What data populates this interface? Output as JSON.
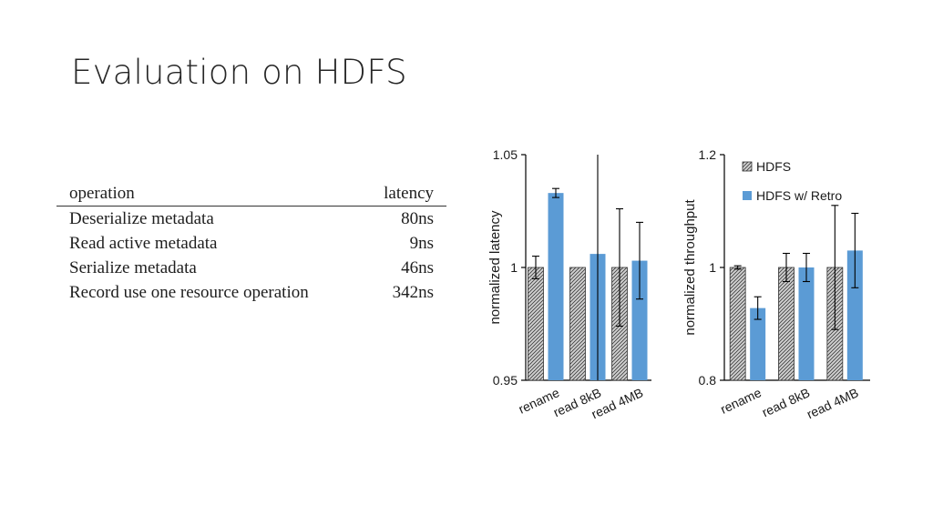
{
  "title": "Evaluation on HDFS",
  "table": {
    "headers": [
      "operation",
      "latency"
    ],
    "rows": [
      [
        "Deserialize metadata",
        "80ns"
      ],
      [
        "Read active metadata",
        "9ns"
      ],
      [
        "Serialize metadata",
        "46ns"
      ],
      [
        "Record use one resource operation",
        "342ns"
      ]
    ]
  },
  "colors": {
    "hdfs": "#d0d0d0",
    "hdfs_retro": "#5b9bd5"
  },
  "chart_data": [
    {
      "type": "bar",
      "categories": [
        "rename",
        "read 8kB",
        "read 4MB"
      ],
      "ylabel": "normalized latency",
      "ylim": [
        0.95,
        1.05
      ],
      "yticks": [
        "0.95",
        "1",
        "1.05"
      ],
      "series": [
        {
          "values": [
            1.0,
            1.0,
            1.0
          ],
          "errors": [
            0.005,
            null,
            0.026
          ],
          "pattern": "hatched"
        },
        {
          "values": [
            1.033,
            1.006,
            1.003
          ],
          "errors": [
            0.002,
            0.06,
            0.017
          ],
          "pattern": "solid"
        }
      ],
      "grid": false
    },
    {
      "type": "bar",
      "categories": [
        "rename",
        "read 8kB",
        "read 4MB"
      ],
      "ylabel": "normalized throughput",
      "ylim": [
        0.8,
        1.2
      ],
      "yticks": [
        "0.8",
        "1",
        "1.2"
      ],
      "legend": {
        "position": "top-right",
        "entries": [
          "HDFS",
          "HDFS w/ Retro"
        ]
      },
      "series": [
        {
          "name": "HDFS",
          "values": [
            1.0,
            1.0,
            1.0
          ],
          "errors": [
            0.003,
            0.025,
            0.11
          ],
          "pattern": "hatched"
        },
        {
          "name": "HDFS w/ Retro",
          "values": [
            0.928,
            1.0,
            1.03
          ],
          "errors": [
            0.02,
            0.025,
            0.066
          ],
          "pattern": "solid"
        }
      ],
      "grid": false
    }
  ]
}
